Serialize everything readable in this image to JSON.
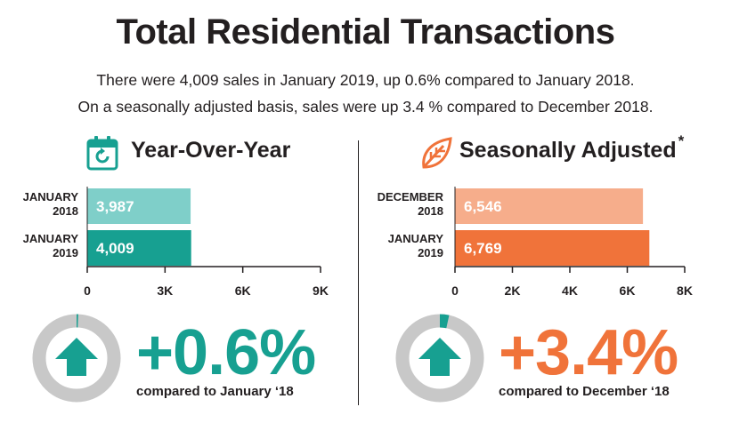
{
  "title": "Total Residential Transactions",
  "subtitle_line1": "There were 4,009 sales in January 2019, up 0.6% compared to January 2018.",
  "subtitle_line2": "On a seasonally adjusted basis, sales were up 3.4 % compared to December 2018.",
  "colors": {
    "teal": "#17a091",
    "teal_light": "#7fcfc9",
    "orange": "#f0733a",
    "orange_light": "#f6ad8b",
    "gray": "#c8c8c8",
    "text": "#231f20"
  },
  "panels": {
    "yoy": {
      "heading": "Year-Over-Year",
      "icon": "calendar-refresh-icon",
      "percent": "+0.6%",
      "compare": "compared to January ‘18",
      "change": 0.006,
      "arrow": "up-arrow-icon"
    },
    "sa": {
      "heading": "Seasonally Adjusted",
      "asterisk": "*",
      "icon": "leaf-icon",
      "percent": "+3.4%",
      "compare": "compared to December ‘18",
      "change": 0.034,
      "arrow": "up-arrow-icon"
    }
  },
  "chart_data": [
    {
      "type": "bar",
      "orientation": "horizontal",
      "title": "Year-Over-Year",
      "categories": [
        [
          "JANUARY",
          "2018"
        ],
        [
          "JANUARY",
          "2019"
        ]
      ],
      "values": [
        3987,
        4009
      ],
      "value_labels": [
        "3,987",
        "4,009"
      ],
      "xlim": [
        0,
        9000
      ],
      "ticks": [
        0,
        3000,
        6000,
        9000
      ],
      "tick_labels": [
        "0",
        "3K",
        "6K",
        "9K"
      ]
    },
    {
      "type": "bar",
      "orientation": "horizontal",
      "title": "Seasonally Adjusted",
      "categories": [
        [
          "DECEMBER",
          "2018"
        ],
        [
          "JANUARY",
          "2019"
        ]
      ],
      "values": [
        6546,
        6769
      ],
      "value_labels": [
        "6,546",
        "6,769"
      ],
      "xlim": [
        0,
        8000
      ],
      "ticks": [
        0,
        2000,
        4000,
        6000,
        8000
      ],
      "tick_labels": [
        "0",
        "2K",
        "4K",
        "6K",
        "8K"
      ]
    }
  ]
}
